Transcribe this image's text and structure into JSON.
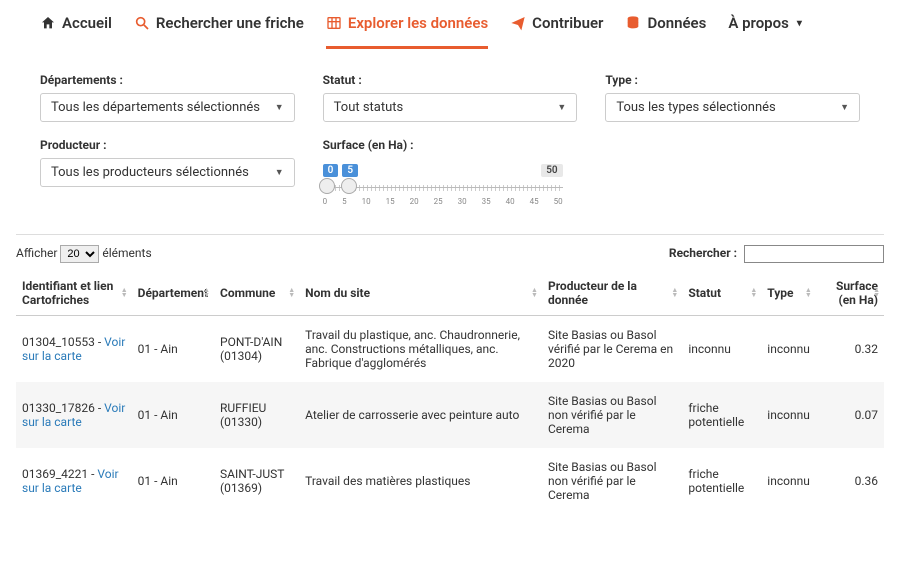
{
  "nav": {
    "items": [
      {
        "label": "Accueil",
        "icon": "home",
        "active": false
      },
      {
        "label": "Rechercher une friche",
        "icon": "search",
        "active": false
      },
      {
        "label": "Explorer les données",
        "icon": "grid",
        "active": true
      },
      {
        "label": "Contribuer",
        "icon": "send",
        "active": false
      },
      {
        "label": "Données",
        "icon": "database",
        "active": false
      },
      {
        "label": "À propos",
        "icon": "none",
        "active": false,
        "caret": true
      }
    ]
  },
  "filters": {
    "departements": {
      "label": "Départements :",
      "value": "Tous les départements sélectionnés"
    },
    "statut": {
      "label": "Statut :",
      "value": "Tout statuts"
    },
    "type": {
      "label": "Type :",
      "value": "Tous les types sélectionnés"
    },
    "producteur": {
      "label": "Producteur :",
      "value": "Tous les producteurs sélectionnés"
    },
    "surface": {
      "label": "Surface (en Ha) :",
      "min": 0,
      "max": 50,
      "low": 0,
      "high": 5,
      "ticks": [
        "0",
        "5",
        "10",
        "15",
        "20",
        "25",
        "30",
        "35",
        "40",
        "45",
        "50"
      ]
    }
  },
  "table": {
    "length_prefix": "Afficher",
    "length_value": "20",
    "length_suffix": "éléments",
    "search_label": "Rechercher :",
    "search_value": "",
    "columns": [
      "Identifiant et lien Cartofriches",
      "Département",
      "Commune",
      "Nom du site",
      "Producteur de la donnée",
      "Statut",
      "Type",
      "Surface (en Ha)"
    ],
    "rows": [
      {
        "id": "01304_10553",
        "link": "Voir sur la carte",
        "dep": "01 - Ain",
        "commune": "PONT-D'AIN (01304)",
        "site": "Travail du plastique, anc. Chaudronnerie, anc. Constructions métalliques, anc. Fabrique d'agglomérés",
        "producteur": "Site Basias ou Basol vérifié par le Cerema en 2020",
        "statut": "inconnu",
        "type": "inconnu",
        "surface": "0.32"
      },
      {
        "id": "01330_17826",
        "link": "Voir sur la carte",
        "dep": "01 - Ain",
        "commune": "RUFFIEU (01330)",
        "site": "Atelier de carrosserie avec peinture auto",
        "producteur": "Site Basias ou Basol non vérifié par le Cerema",
        "statut": "friche potentielle",
        "type": "inconnu",
        "surface": "0.07"
      },
      {
        "id": "01369_4221",
        "link": "Voir sur la carte",
        "dep": "01 - Ain",
        "commune": "SAINT-JUST (01369)",
        "site": "Travail des matières plastiques",
        "producteur": "Site Basias ou Basol non vérifié par le Cerema",
        "statut": "friche potentielle",
        "type": "inconnu",
        "surface": "0.36"
      }
    ]
  },
  "colors": {
    "accent": "#e85c2f",
    "link": "#2b7bb9",
    "badge": "#4a90d9"
  }
}
